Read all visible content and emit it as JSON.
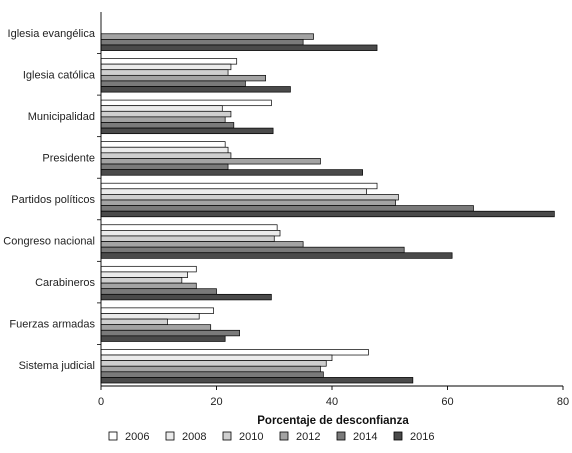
{
  "chart_data": {
    "type": "bar",
    "orientation": "horizontal",
    "title": "",
    "xlabel": "Porcentaje de desconfianza",
    "ylabel": "",
    "xlim": [
      0,
      80
    ],
    "xticks": [
      0,
      20,
      40,
      60,
      80
    ],
    "grid": false,
    "legend_position": "bottom",
    "categories": [
      "Iglesia evangélica",
      "Iglesia católica",
      "Municipalidad",
      "Presidente",
      "Partidos políticos",
      "Congreso nacional",
      "Carabineros",
      "Fuerzas armadas",
      "Sistema judicial"
    ],
    "series": [
      {
        "name": "2006",
        "color": "#ffffff",
        "values": [
          null,
          23.5,
          29.5,
          21.5,
          47.8,
          30.5,
          16.5,
          19.5,
          46.3
        ]
      },
      {
        "name": "2008",
        "color": "#ebebeb",
        "values": [
          null,
          22.5,
          21.0,
          22.0,
          46.0,
          31.0,
          15.0,
          17.0,
          40.0
        ]
      },
      {
        "name": "2010",
        "color": "#cfcfcf",
        "values": [
          null,
          22.0,
          22.5,
          22.5,
          51.5,
          30.0,
          14.0,
          11.5,
          39.0
        ]
      },
      {
        "name": "2012",
        "color": "#a3a3a3",
        "values": [
          36.8,
          28.5,
          21.5,
          38.0,
          51.0,
          35.0,
          16.5,
          19.0,
          38.0
        ]
      },
      {
        "name": "2014",
        "color": "#7a7a7a",
        "values": [
          35.0,
          25.0,
          23.0,
          22.0,
          64.5,
          52.5,
          20.0,
          24.0,
          38.5
        ]
      },
      {
        "name": "2016",
        "color": "#4a4a4a",
        "values": [
          47.8,
          32.8,
          29.8,
          45.3,
          78.5,
          60.8,
          29.5,
          21.5,
          54.0
        ]
      }
    ]
  }
}
